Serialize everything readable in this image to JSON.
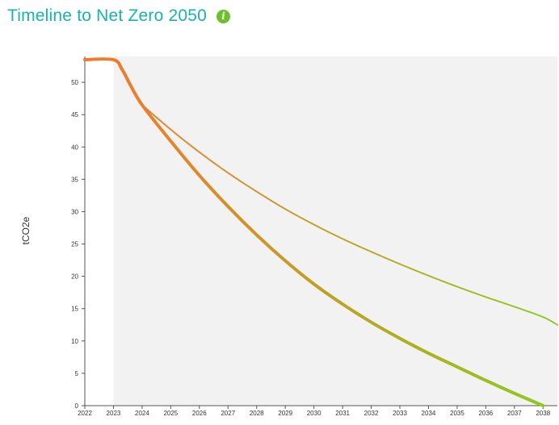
{
  "header": {
    "title": "Timeline to Net Zero 2050",
    "info_icon": "info-icon",
    "accent_color": "#17b3ac",
    "icon_color": "#6cc12b"
  },
  "chart_data": {
    "type": "line",
    "title": "Timeline to Net Zero 2050",
    "xlabel": "",
    "ylabel": "tCO2e",
    "xlim": [
      2022,
      2038.5
    ],
    "ylim": [
      0,
      54
    ],
    "xticks": [
      2022,
      2023,
      2024,
      2025,
      2026,
      2027,
      2028,
      2029,
      2030,
      2031,
      2032,
      2033,
      2034,
      2035,
      2036,
      2037,
      2038
    ],
    "yticks": [
      0,
      5,
      10,
      15,
      20,
      25,
      30,
      35,
      40,
      45,
      50
    ],
    "grid": false,
    "legend": "none",
    "shaded_region_x_start": 2023,
    "colors": {
      "start": "#f07a2c",
      "end": "#8fc81d",
      "shade": "#f2f2f2"
    },
    "series": [
      {
        "style": "solid",
        "x": [
          2022,
          2023,
          2023.3,
          2023.6,
          2024,
          2025,
          2026,
          2027,
          2028,
          2029,
          2030,
          2031,
          2032,
          2033,
          2034,
          2035,
          2036,
          2037,
          2038
        ],
        "y": [
          53.5,
          53.5,
          52.0,
          49.5,
          46.5,
          40.9,
          35.6,
          30.8,
          26.4,
          22.4,
          18.8,
          15.7,
          12.9,
          10.4,
          8.1,
          6.0,
          3.9,
          1.9,
          0
        ]
      },
      {
        "style": "dotted",
        "x": [
          2024,
          2025,
          2026,
          2027,
          2028,
          2029,
          2030,
          2031,
          2032,
          2033,
          2034,
          2035,
          2036,
          2037,
          2038,
          2038.5
        ],
        "y": [
          46.5,
          42.7,
          39.2,
          36.0,
          33.1,
          30.4,
          28.0,
          25.8,
          23.8,
          21.9,
          20.1,
          18.4,
          16.8,
          15.3,
          13.7,
          12.5
        ]
      }
    ]
  }
}
